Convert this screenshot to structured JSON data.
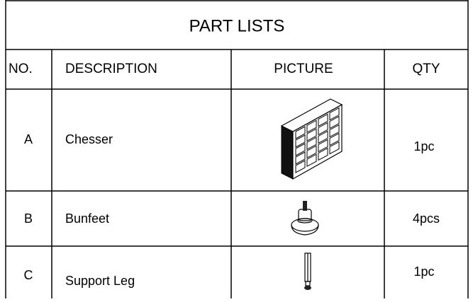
{
  "header": {
    "title": "PART LISTS"
  },
  "table": {
    "columns": [
      "NO.",
      "DESCRIPTION",
      "PICTURE",
      "QTY"
    ],
    "rows": [
      [
        "A",
        "Chesser",
        "1pc"
      ],
      [
        "B",
        "Bunfeet",
        "4pcs"
      ],
      [
        "C",
        "Support Leg",
        "1pc"
      ]
    ]
  }
}
